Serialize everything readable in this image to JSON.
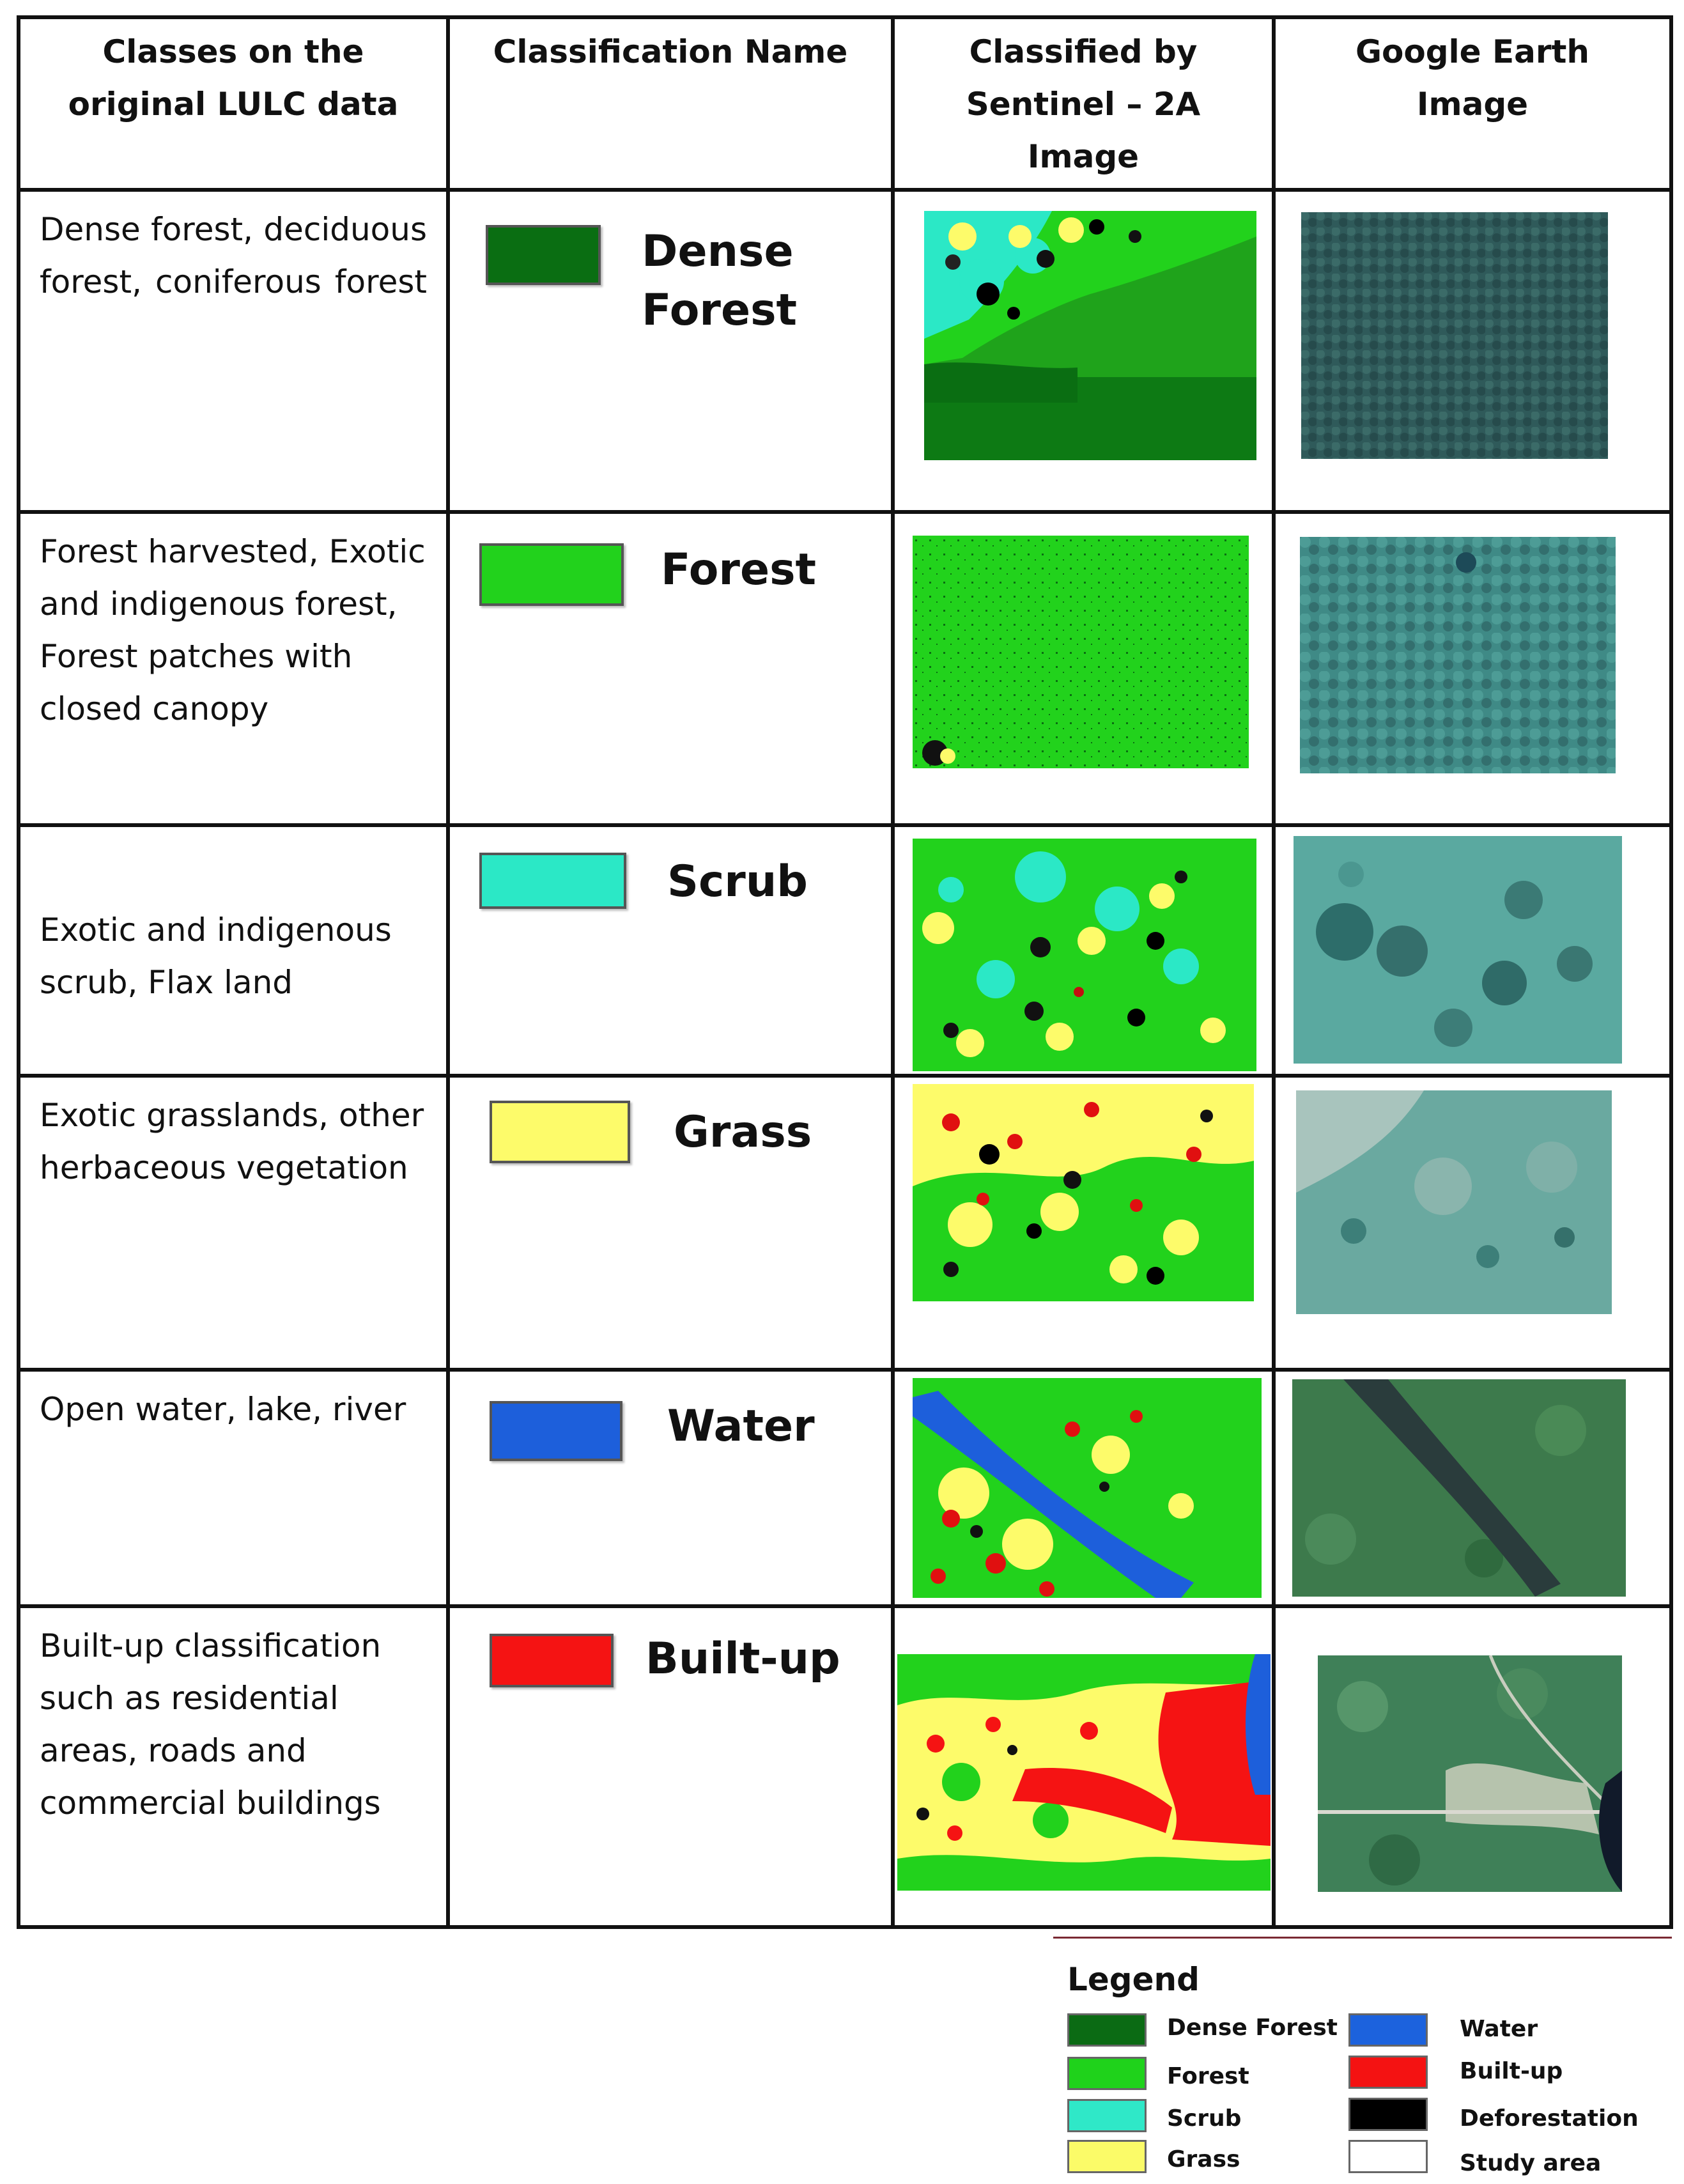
{
  "headers": [
    "Classes on the original LULC data",
    "Classification Name",
    "Classified by Sentinel – 2A Image",
    "Google Earth Image"
  ],
  "rows": [
    {
      "description": "Dense forest, deciduous forest, coniferous forest",
      "class_name": "Dense Forest",
      "color": "#0a6e12"
    },
    {
      "description": "Forest harvested, Exotic and indigenous forest, Forest patches with closed canopy",
      "class_name": "Forest",
      "color": "#22d21c"
    },
    {
      "description": "Exotic and indigenous scrub, Flax land",
      "class_name": "Scrub",
      "color": "#2be8c6"
    },
    {
      "description": "Exotic grasslands, other herbaceous vegetation",
      "class_name": "Grass",
      "color": "#fdfb6a"
    },
    {
      "description": "Open water, lake, river",
      "class_name": "Water",
      "color": "#1d5fdb"
    },
    {
      "description": "Built-up classification such as residential areas, roads and commercial buildings",
      "class_name": "Built-up",
      "color": "#f51313"
    }
  ],
  "legend": {
    "title": "Legend",
    "items": [
      {
        "label": "Dense Forest",
        "color": "#0b6b14"
      },
      {
        "label": "Forest",
        "color": "#1fd21b"
      },
      {
        "label": "Scrub",
        "color": "#2fe8c8"
      },
      {
        "label": "Grass",
        "color": "#fbfb68"
      },
      {
        "label": "Water",
        "color": "#1c62dd"
      },
      {
        "label": "Built-up",
        "color": "#f41212"
      },
      {
        "label": "Deforestation",
        "color": "#000000"
      },
      {
        "label": "Study area",
        "color": "#ffffff"
      }
    ]
  }
}
